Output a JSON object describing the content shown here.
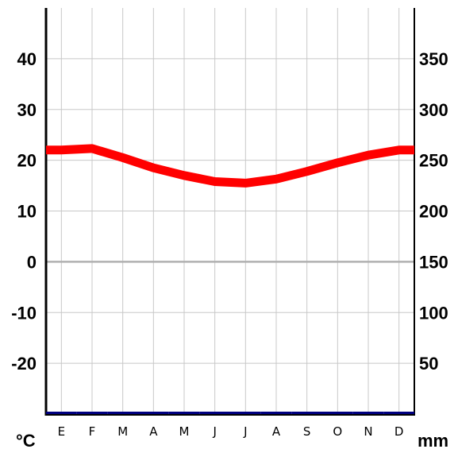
{
  "chart_data": {
    "type": "line",
    "title": "",
    "categories": [
      "E",
      "F",
      "M",
      "A",
      "M",
      "J",
      "J",
      "A",
      "S",
      "O",
      "N",
      "D"
    ],
    "left_axis": {
      "unit": "°C",
      "ticks": [
        40,
        30,
        20,
        10,
        0,
        -10,
        -20
      ],
      "ylim": [
        -30,
        50
      ]
    },
    "right_axis": {
      "unit": "mm",
      "ticks": [
        350,
        300,
        250,
        200,
        150,
        100,
        50
      ],
      "ylim": [
        0,
        400
      ]
    },
    "series": [
      {
        "axis": "left",
        "color": "#ff0000",
        "values": [
          22,
          22.3,
          20.5,
          18.5,
          17,
          15.8,
          15.5,
          16.3,
          17.8,
          19.5,
          21,
          22
        ]
      },
      {
        "axis": "right",
        "color": "#000080",
        "values": [
          0,
          0,
          0,
          0,
          0,
          0,
          0,
          0,
          0,
          0,
          0,
          0
        ]
      }
    ],
    "grid": true
  }
}
